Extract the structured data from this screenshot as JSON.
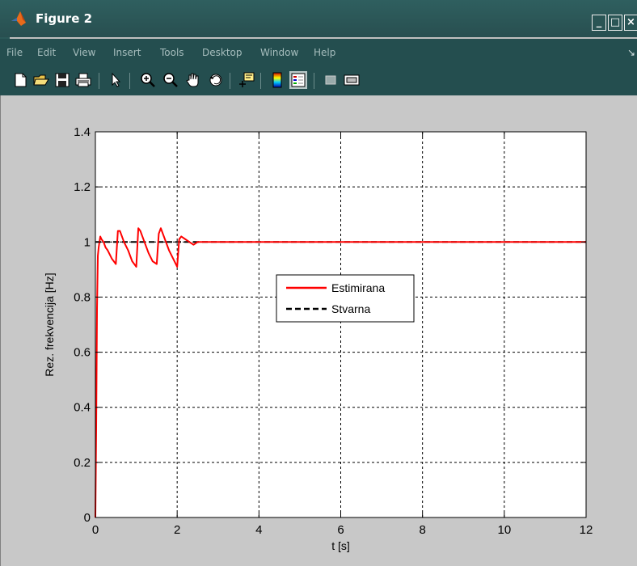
{
  "window": {
    "title": "Figure 2",
    "colors": {
      "titlebar": "#2f5f5f",
      "menubar": "#244e4f",
      "menu_text": "#a6bdbd",
      "figure_bg": "#c8c8c8"
    },
    "buttons": {
      "minimize": "_",
      "maximize": "□",
      "close": "×"
    }
  },
  "menu": {
    "items": [
      "File",
      "Edit",
      "View",
      "Insert",
      "Tools",
      "Desktop",
      "Window",
      "Help"
    ],
    "overflow": "↘"
  },
  "toolbar": {
    "icons": [
      "new-figure-icon",
      "open-file-icon",
      "save-icon",
      "print-icon",
      "select-arrow-icon",
      "zoom-in-icon",
      "zoom-out-icon",
      "pan-hand-icon",
      "rotate-3d-icon",
      "data-cursor-icon",
      "insert-colorbar-icon",
      "insert-legend-icon",
      "hide-plot-tools-icon",
      "show-plot-tools-icon"
    ]
  },
  "chart_data": {
    "type": "line",
    "title": "",
    "xlabel": "t [s]",
    "ylabel": "Rez. frekvencija [Hz]",
    "xlim": [
      0,
      12
    ],
    "ylim": [
      0,
      1.4
    ],
    "xticks": [
      "0",
      "2",
      "4",
      "6",
      "8",
      "10",
      "12"
    ],
    "yticks": [
      "0",
      "0.2",
      "0.4",
      "0.6",
      "0.8",
      "1",
      "1.2",
      "1.4"
    ],
    "grid": true,
    "legend_position": "center",
    "series": [
      {
        "name": "Estimirana",
        "color": "#ff0000",
        "style": "solid",
        "x": [
          0,
          0.02,
          0.04,
          0.06,
          0.08,
          0.1,
          0.12,
          0.15,
          0.2,
          0.25,
          0.3,
          0.4,
          0.5,
          0.55,
          0.6,
          0.7,
          0.8,
          0.9,
          1.0,
          1.05,
          1.1,
          1.2,
          1.3,
          1.4,
          1.5,
          1.55,
          1.6,
          1.7,
          1.8,
          1.9,
          2.0,
          2.05,
          2.1,
          2.2,
          2.3,
          2.4,
          2.5,
          2.6,
          2.8,
          3.0,
          3.5,
          4.0,
          5.0,
          6.0,
          7.0,
          8.0,
          9.0,
          10.0,
          11.0,
          12.0
        ],
        "y": [
          0,
          0.33,
          0.76,
          0.95,
          0.98,
          1.0,
          1.02,
          1.01,
          1.0,
          0.98,
          0.97,
          0.94,
          0.92,
          1.04,
          1.04,
          1.0,
          0.97,
          0.93,
          0.91,
          1.05,
          1.04,
          1.0,
          0.96,
          0.93,
          0.92,
          1.03,
          1.05,
          1.01,
          0.97,
          0.94,
          0.91,
          1.01,
          1.02,
          1.01,
          1.0,
          0.99,
          1.0,
          1.0,
          1.0,
          1.0,
          1.0,
          1.0,
          1.0,
          1.0,
          1.0,
          1.0,
          1.0,
          1.0,
          1.0,
          1.0
        ]
      },
      {
        "name": "Stvarna",
        "color": "#000000",
        "style": "dashed",
        "x": [
          0,
          12
        ],
        "y": [
          1,
          1
        ]
      }
    ]
  }
}
